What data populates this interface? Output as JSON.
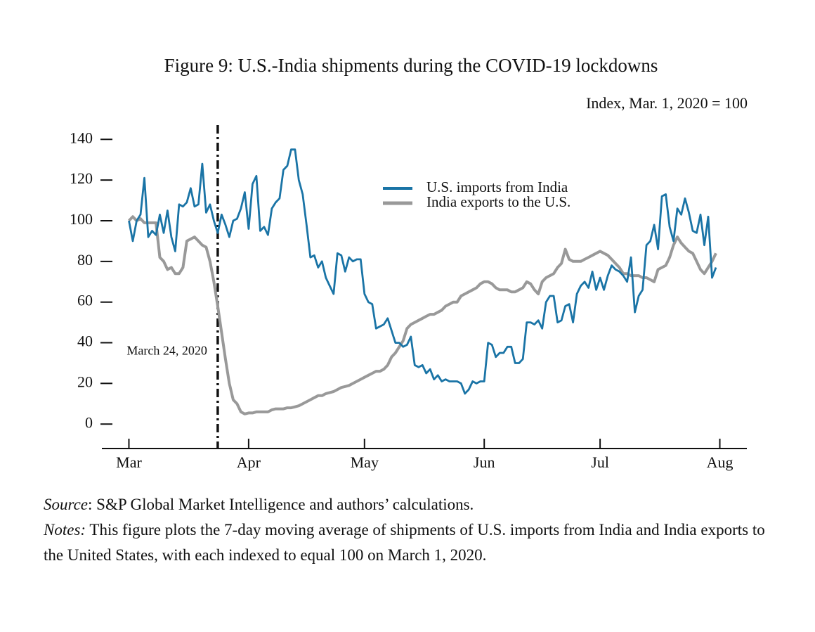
{
  "chart_data": {
    "type": "line",
    "title": "Figure 9: U.S.-India shipments during the COVID-19 lockdowns",
    "subtitle": "Index, Mar. 1, 2020 = 100",
    "x": [
      0,
      1,
      2,
      3,
      4,
      5,
      6,
      7,
      8,
      9,
      10,
      11,
      12,
      13,
      14,
      15,
      16,
      17,
      18,
      19,
      20,
      21,
      22,
      23,
      24,
      25,
      26,
      27,
      28,
      29,
      30,
      31,
      32,
      33,
      34,
      35,
      36,
      37,
      38,
      39,
      40,
      41,
      42,
      43,
      44,
      45,
      46,
      47,
      48,
      49,
      50,
      51,
      52,
      53,
      54,
      55,
      56,
      57,
      58,
      59,
      60,
      61,
      62,
      63,
      64,
      65,
      66,
      67,
      68,
      69,
      70,
      71,
      72,
      73,
      74,
      75,
      76,
      77,
      78,
      79,
      80,
      81,
      82,
      83,
      84,
      85,
      86,
      87,
      88,
      89,
      90,
      91,
      92,
      93,
      94,
      95,
      96,
      97,
      98,
      99,
      100,
      101,
      102,
      103,
      104,
      105,
      106,
      107,
      108,
      109,
      110,
      111,
      112,
      113,
      114,
      115,
      116,
      117,
      118,
      119,
      120,
      121,
      122,
      123,
      124,
      125,
      126,
      127,
      128,
      129,
      130,
      131,
      132,
      133,
      134,
      135,
      136,
      137,
      138,
      139,
      140,
      141,
      142,
      143,
      144,
      145,
      146,
      147,
      148,
      149,
      150,
      151,
      152
    ],
    "series": [
      {
        "name": "U.S. imports from India",
        "color": "#1a74a6",
        "values": [
          100,
          90,
          100,
          103,
          121,
          92,
          95,
          93,
          103,
          94,
          105,
          92,
          85,
          108,
          107,
          109,
          116,
          107,
          108,
          128,
          104,
          108,
          100,
          94,
          103,
          98,
          92,
          100,
          101,
          106,
          114,
          96,
          118,
          122,
          95,
          97,
          93,
          106,
          109,
          111,
          125,
          127,
          135,
          135,
          120,
          113,
          98,
          82,
          83,
          77,
          80,
          72,
          68,
          64,
          84,
          83,
          75,
          82,
          80,
          81,
          81,
          64,
          60,
          59,
          47,
          48,
          49,
          52,
          46,
          40,
          40,
          38,
          39,
          43,
          29,
          28,
          29,
          25,
          27,
          22,
          24,
          21,
          22,
          21,
          21,
          21,
          20,
          15,
          17,
          21,
          20,
          21,
          21,
          40,
          39,
          33,
          35,
          35,
          38,
          38,
          30,
          30,
          32,
          50,
          50,
          49,
          51,
          47,
          60,
          63,
          63,
          50,
          51,
          58,
          59,
          50,
          64,
          68,
          70,
          67,
          75,
          66,
          72,
          66,
          73,
          78,
          76,
          75,
          73,
          70,
          82,
          55,
          63,
          66,
          88,
          90,
          98,
          86,
          112,
          113,
          97,
          90,
          106,
          103,
          111,
          104,
          95,
          94,
          103,
          88,
          102,
          72,
          77
        ]
      },
      {
        "name": "India exports to the U.S.",
        "color": "#999999",
        "values": [
          100,
          102,
          100,
          101,
          99,
          99,
          99,
          99,
          82,
          80,
          76,
          77,
          74,
          74,
          77,
          90,
          91,
          92,
          90,
          88,
          87,
          80,
          70,
          58,
          45,
          32,
          20,
          12,
          10,
          6,
          5,
          5.5,
          5.5,
          6,
          6,
          6,
          6,
          7,
          7.5,
          7.5,
          7.5,
          8,
          8,
          8.5,
          9,
          10,
          11,
          12,
          13,
          14,
          14,
          15,
          15.5,
          16,
          17,
          18,
          18.5,
          19,
          20,
          21,
          22,
          23,
          24,
          25,
          26,
          26,
          27,
          29,
          33,
          35,
          38,
          41,
          47,
          49,
          50,
          51,
          52,
          53,
          54,
          54,
          55,
          56,
          58,
          59,
          60,
          60,
          63,
          64,
          65,
          66,
          67,
          69,
          70,
          70,
          69,
          67,
          66,
          66,
          66,
          65,
          65,
          66,
          67,
          70,
          69,
          66,
          64,
          70,
          72,
          73,
          74,
          77,
          79,
          86,
          81,
          80,
          80,
          80,
          81,
          82,
          83,
          84,
          85,
          84,
          83,
          81,
          79,
          77,
          74,
          74,
          73,
          73,
          73,
          72,
          72,
          71,
          70,
          76,
          77,
          78,
          82,
          88,
          92,
          89,
          87,
          85,
          84,
          80,
          76,
          74,
          77,
          80,
          84
        ]
      }
    ],
    "xlim": [
      -7,
      160
    ],
    "xticks": [
      {
        "value": 0,
        "label": "Mar"
      },
      {
        "value": 31,
        "label": "Apr"
      },
      {
        "value": 61,
        "label": "May"
      },
      {
        "value": 92,
        "label": "Jun"
      },
      {
        "value": 122,
        "label": "Jul"
      },
      {
        "value": 153,
        "label": "Aug"
      }
    ],
    "ylim": [
      -12,
      147
    ],
    "yticks": [
      0,
      20,
      40,
      60,
      80,
      100,
      120,
      140
    ],
    "annotations": [
      {
        "text": "March 24, 2020",
        "x": 23
      }
    ],
    "legend": "upper right"
  },
  "footer": {
    "source_label": "Source",
    "source_text": ": S&P Global Market Intelligence and authors’ calculations.",
    "notes_label": "Notes:",
    "notes_text": " This figure plots the 7-day moving average of shipments of U.S. imports from India and India exports to the United States, with each indexed to equal 100 on March 1, 2020."
  }
}
